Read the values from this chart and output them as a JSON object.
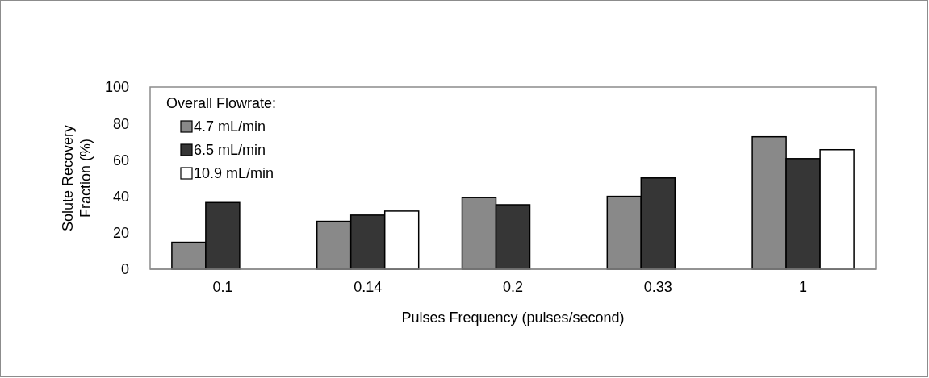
{
  "chart_data": {
    "type": "bar",
    "xlabel": "Pulses Frequency (pulses/second)",
    "ylabel": "Solute Recovery Fraction (%)",
    "legend_title": "Overall Flowrate:",
    "legend": "top left",
    "categories": [
      "0.1",
      "0.14",
      "0.2",
      "0.33",
      "1"
    ],
    "series": [
      {
        "name": "4.7 mL/min",
        "color": "#898989",
        "values": [
          14.8,
          26.3,
          39.3,
          40,
          72.7
        ]
      },
      {
        "name": "6.5 mL/min",
        "color": "#363636",
        "values": [
          36.6,
          29.7,
          35.4,
          50.1,
          60.7
        ]
      },
      {
        "name": "10.9 mL/min",
        "color": "#ffffff",
        "values": [
          null,
          31.9,
          null,
          null,
          65.6
        ]
      }
    ],
    "ylim": [
      0,
      100
    ],
    "yticks": [
      0,
      20,
      40,
      60,
      80,
      100
    ]
  }
}
